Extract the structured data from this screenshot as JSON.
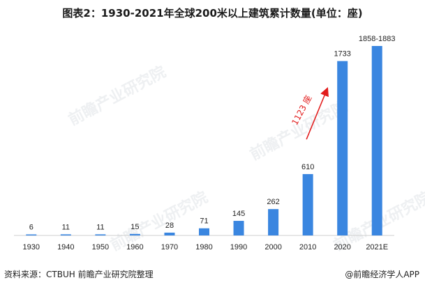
{
  "title": "图表2：1930-2021年全球200米以上建筑累计数量(单位：座)",
  "source": "资料来源：CTBUH 前瞻产业研究院整理",
  "credit": "@前瞻经济学人APP",
  "watermark": "前瞻产业研究院",
  "colors": {
    "bar": "#3a86e0",
    "annotation": "#e21b1b"
  },
  "chart_data": {
    "type": "bar",
    "categories": [
      "1930",
      "1940",
      "1950",
      "1960",
      "1970",
      "1980",
      "1990",
      "2000",
      "2010",
      "2020",
      "2021E"
    ],
    "values": [
      6,
      11,
      11,
      15,
      28,
      71,
      145,
      262,
      610,
      1733,
      1883
    ],
    "value_labels": [
      "6",
      "11",
      "11",
      "15",
      "28",
      "71",
      "145",
      "262",
      "610",
      "1733",
      "1858-1883"
    ],
    "annotation": {
      "text": "1123 座",
      "from_category": "2010",
      "to_category": "2020"
    },
    "ylim": [
      0,
      1883
    ],
    "xlabel": "",
    "ylabel": "",
    "grid": false
  }
}
